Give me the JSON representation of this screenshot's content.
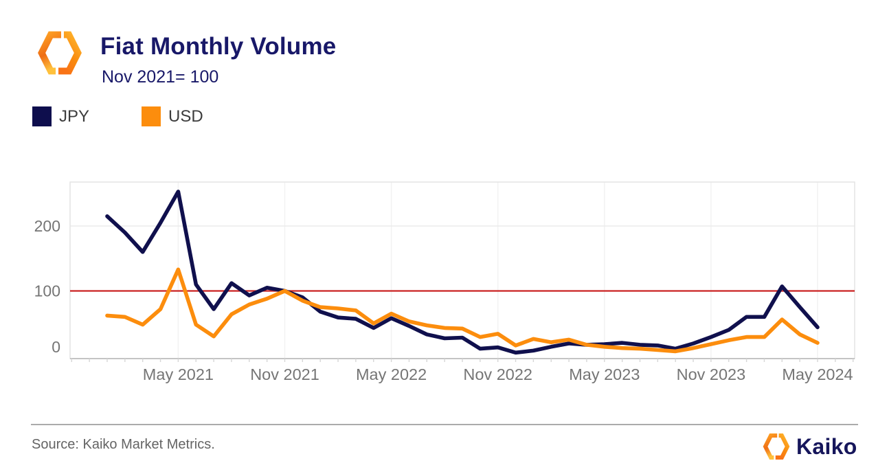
{
  "header": {
    "title": "Fiat Monthly Volume",
    "subtitle": "Nov 2021= 100"
  },
  "legend": [
    {
      "label": "JPY",
      "color": "#0E0E4D"
    },
    {
      "label": "USD",
      "color": "#FC8D0D"
    }
  ],
  "footer": {
    "source": "Source: Kaiko Market Metrics.",
    "brand": "Kaiko"
  },
  "colors": {
    "jpy_line": "#10104D",
    "usd_line": "#FC8D0D",
    "reference_line": "#C92222",
    "axis_text": "#757575",
    "navy_brand": "#181868"
  },
  "chart_data": {
    "type": "line",
    "title": "Fiat Monthly Volume",
    "subtitle": "Nov 2021= 100",
    "x": [
      "Jan 2021",
      "Feb 2021",
      "Mar 2021",
      "Apr 2021",
      "May 2021",
      "Jun 2021",
      "Jul 2021",
      "Aug 2021",
      "Sep 2021",
      "Oct 2021",
      "Nov 2021",
      "Dec 2021",
      "Jan 2022",
      "Feb 2022",
      "Mar 2022",
      "Apr 2022",
      "May 2022",
      "Jun 2022",
      "Jul 2022",
      "Aug 2022",
      "Sep 2022",
      "Oct 2022",
      "Nov 2022",
      "Dec 2022",
      "Jan 2023",
      "Feb 2023",
      "Mar 2023",
      "Apr 2023",
      "May 2023",
      "Jun 2023",
      "Jul 2023",
      "Aug 2023",
      "Sep 2023",
      "Oct 2023",
      "Nov 2023",
      "Dec 2023",
      "Jan 2024",
      "Feb 2024",
      "Mar 2024",
      "Apr 2024",
      "May 2024"
    ],
    "series": [
      {
        "name": "JPY",
        "color": "#10104D",
        "values": [
          215,
          190,
          160,
          205,
          253,
          110,
          72,
          112,
          93,
          105,
          100,
          90,
          68,
          59,
          57,
          43,
          58,
          46,
          33,
          27,
          28,
          11,
          13,
          5,
          8,
          14,
          19,
          17,
          18,
          20,
          17,
          16,
          11,
          19,
          29,
          40,
          60,
          60,
          107,
          75,
          44
        ]
      },
      {
        "name": "USD",
        "color": "#FC8D0D",
        "values": [
          62,
          60,
          48,
          72,
          133,
          48,
          30,
          64,
          79,
          88,
          100,
          85,
          75,
          73,
          70,
          50,
          65,
          53,
          47,
          43,
          42,
          29,
          34,
          16,
          26,
          21,
          25,
          17,
          14,
          12,
          11,
          9,
          7,
          12,
          18,
          24,
          29,
          29,
          56,
          33,
          20
        ]
      }
    ],
    "reference_line": {
      "value": 100,
      "color": "#C92222",
      "meaning": "Nov 2021 baseline = 100"
    },
    "y_ticks": [
      0,
      100,
      200
    ],
    "x_tick_labels": [
      "May 2021",
      "Nov 2021",
      "May 2022",
      "Nov 2022",
      "May 2023",
      "Nov 2023",
      "May 2024"
    ],
    "x_tick_indices": [
      4,
      10,
      16,
      22,
      28,
      34,
      40
    ],
    "ylim": [
      -5,
      268
    ],
    "grid": "horizontal-light",
    "legend_position": "top-left"
  }
}
